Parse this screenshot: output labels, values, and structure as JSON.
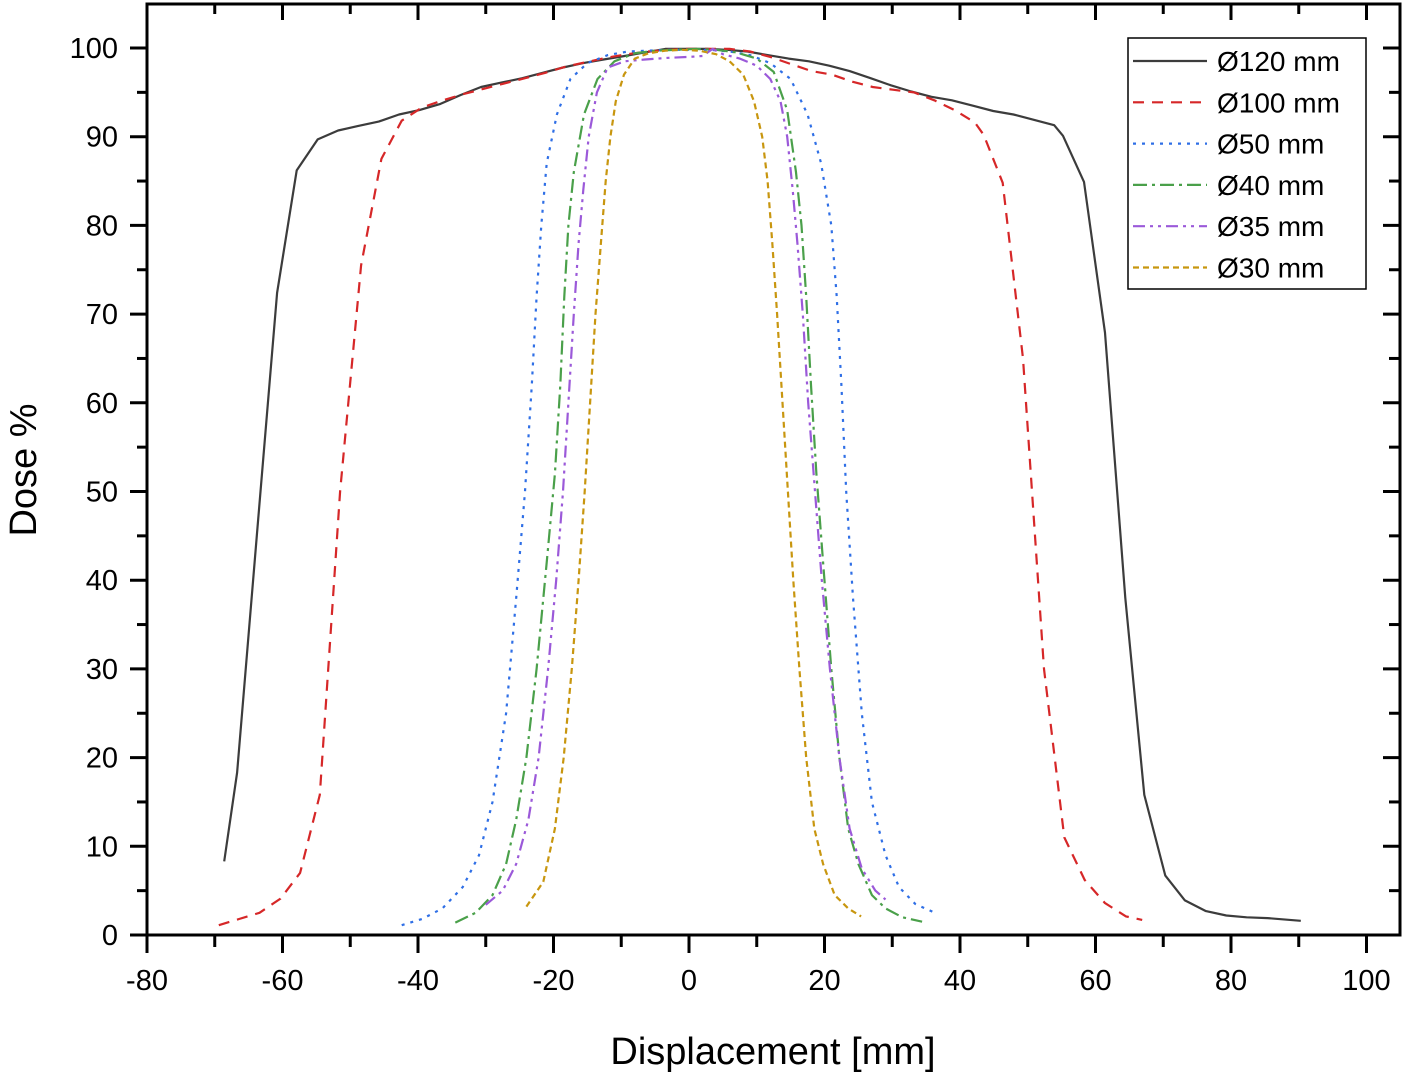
{
  "chart_data": {
    "type": "line",
    "title": "",
    "xlabel": "Displacement [mm]",
    "ylabel": "Dose %",
    "xlim": [
      -80,
      103
    ],
    "ylim": [
      0,
      104.5
    ],
    "xticks": [
      -80,
      -60,
      -40,
      -20,
      0,
      20,
      40,
      60,
      80,
      100
    ],
    "xtick_labels": [
      "-80",
      "-60",
      "-40",
      "-20",
      "0",
      "20",
      "40",
      "60",
      "80",
      "100"
    ],
    "yticks": [
      0,
      10,
      20,
      30,
      40,
      50,
      60,
      70,
      80,
      90,
      100
    ],
    "ytick_labels": [
      "0",
      "10",
      "20",
      "30",
      "40",
      "50",
      "60",
      "70",
      "80",
      "90",
      "100"
    ],
    "grid": false,
    "legend_position": "upper right",
    "series": [
      {
        "name": "Ø120 mm",
        "color": "#3c3c3c",
        "dash": "",
        "x": [
          -68.6,
          -66.7,
          -63.8,
          -60.8,
          -57.9,
          -54.8,
          -51.8,
          -48.9,
          -45.8,
          -42.8,
          -39.8,
          -36.7,
          -33.7,
          -30.7,
          -27.7,
          -24.6,
          -21.6,
          -18.6,
          -15.6,
          -12.6,
          -9.5,
          -6.5,
          -3.5,
          -0.4,
          2.6,
          5.6,
          8.6,
          11.6,
          14.7,
          17.7,
          20.7,
          23.7,
          26.8,
          29.8,
          32.8,
          35.8,
          38.8,
          41.9,
          44.9,
          47.9,
          50.9,
          53.9,
          55.2,
          58.3,
          61.4,
          64.4,
          67.2,
          70.3,
          73.2,
          76.3,
          79.3,
          82.3,
          85.4,
          90.3
        ],
        "y": [
          8.3,
          18.3,
          45.0,
          72.4,
          86.2,
          89.7,
          90.7,
          91.2,
          91.7,
          92.5,
          93.0,
          93.7,
          94.7,
          95.6,
          96.1,
          96.6,
          97.2,
          97.8,
          98.3,
          98.7,
          99.1,
          99.5,
          99.9,
          99.9,
          99.9,
          99.8,
          99.6,
          99.2,
          98.8,
          98.5,
          98.0,
          97.4,
          96.6,
          95.8,
          95.1,
          94.5,
          94.1,
          93.5,
          92.9,
          92.5,
          91.9,
          91.3,
          90.1,
          84.9,
          67.9,
          38.0,
          15.8,
          6.7,
          3.9,
          2.7,
          2.2,
          2.0,
          1.9,
          1.6
        ]
      },
      {
        "name": "Ø100 mm",
        "color": "#d62728",
        "dash": "11,8",
        "x": [
          -69.4,
          -66.4,
          -63.4,
          -60.3,
          -57.4,
          -54.5,
          -51.5,
          -48.4,
          -45.4,
          -42.4,
          -39.4,
          -36.3,
          -33.3,
          -30.3,
          -27.3,
          -24.2,
          -21.2,
          -18.2,
          -15.2,
          -12.2,
          -9.1,
          -6.1,
          -3.1,
          -0.1,
          2.9,
          6.0,
          9.0,
          12.0,
          15.0,
          18.1,
          21.1,
          24.1,
          27.1,
          30.1,
          33.2,
          36.2,
          39.2,
          42.2,
          43.5,
          46.3,
          49.3,
          52.4,
          55.4,
          58.4,
          61.4,
          64.5,
          66.9
        ],
        "y": [
          1.1,
          1.8,
          2.5,
          4.1,
          7.0,
          15.8,
          50.0,
          75.5,
          87.5,
          91.8,
          93.3,
          94.1,
          94.8,
          95.4,
          96.0,
          96.6,
          97.2,
          97.9,
          98.4,
          98.9,
          99.3,
          99.6,
          99.8,
          99.9,
          99.9,
          99.9,
          99.6,
          99.0,
          98.2,
          97.4,
          97.0,
          96.2,
          95.6,
          95.3,
          95.0,
          94.1,
          93.0,
          91.6,
          90.2,
          84.8,
          65.0,
          30.0,
          11.0,
          6.2,
          3.6,
          2.1,
          1.7
        ]
      },
      {
        "name": "Ø50 mm",
        "color": "#2f6fe6",
        "dash": "3,6",
        "x": [
          -42.4,
          -39.4,
          -36.4,
          -33.4,
          -31.0,
          -29.0,
          -27.0,
          -25.5,
          -24.2,
          -23.2,
          -22.5,
          -21.8,
          -21.0,
          -19.5,
          -17.5,
          -15.0,
          -12.0,
          -9.0,
          -6.0,
          -3.0,
          0.0,
          3.0,
          6.0,
          9.0,
          12.0,
          15.0,
          17.5,
          19.5,
          21.0,
          21.8,
          22.5,
          23.2,
          24.2,
          25.5,
          27.0,
          29.0,
          31.0,
          33.4,
          36.0
        ],
        "y": [
          1.1,
          1.8,
          3.0,
          5.4,
          9.0,
          15.0,
          25.0,
          38.0,
          50.0,
          62.0,
          72.0,
          80.0,
          87.0,
          92.5,
          96.5,
          98.3,
          99.2,
          99.6,
          99.7,
          99.8,
          99.8,
          99.8,
          99.6,
          99.2,
          98.3,
          96.5,
          92.5,
          87.0,
          80.0,
          72.0,
          62.0,
          50.0,
          38.0,
          25.0,
          15.0,
          9.0,
          5.4,
          3.5,
          2.6
        ]
      },
      {
        "name": "Ø40 mm",
        "color": "#4aa04a",
        "dash": "14,5,3,5",
        "x": [
          -34.5,
          -31.5,
          -29.0,
          -27.0,
          -25.5,
          -24.0,
          -22.5,
          -21.0,
          -19.8,
          -19.0,
          -18.4,
          -17.8,
          -17.0,
          -15.5,
          -13.5,
          -11.0,
          -8.0,
          -5.0,
          -2.0,
          1.0,
          4.0,
          7.0,
          10.0,
          12.5,
          14.5,
          15.8,
          16.6,
          17.3,
          18.0,
          18.8,
          19.8,
          21.0,
          22.2,
          23.5,
          25.0,
          27.0,
          29.0,
          31.5,
          34.4
        ],
        "y": [
          1.4,
          2.5,
          4.5,
          8.0,
          13.0,
          20.0,
          30.0,
          42.0,
          52.0,
          62.0,
          72.0,
          80.0,
          86.0,
          92.5,
          96.5,
          98.5,
          99.4,
          99.7,
          99.8,
          99.9,
          99.8,
          99.5,
          98.8,
          97.3,
          93.0,
          86.0,
          80.0,
          72.0,
          62.0,
          52.0,
          42.0,
          30.0,
          20.0,
          12.0,
          8.0,
          4.5,
          3.0,
          2.0,
          1.5
        ]
      },
      {
        "name": "Ø35 mm",
        "color": "#9b59d9",
        "dash": "12,5,3,5,3,5",
        "x": [
          -30.0,
          -27.5,
          -25.5,
          -23.7,
          -22.2,
          -20.8,
          -19.6,
          -18.6,
          -17.8,
          -17.0,
          -16.3,
          -15.6,
          -14.8,
          -13.6,
          -12.0,
          -9.5,
          -6.5,
          -3.0,
          0.0,
          2.0,
          3.5,
          5.0,
          7.5,
          10.0,
          12.0,
          13.5,
          14.5,
          15.3,
          16.0,
          16.8,
          17.6,
          18.6,
          19.6,
          20.8,
          22.2,
          23.7,
          25.5,
          27.5,
          29.0
        ],
        "y": [
          3.4,
          5.0,
          8.0,
          13.0,
          20.0,
          30.0,
          40.0,
          50.0,
          60.0,
          70.0,
          78.0,
          84.0,
          90.0,
          95.0,
          97.8,
          98.5,
          98.7,
          98.9,
          99.0,
          99.1,
          99.9,
          99.3,
          98.8,
          98.0,
          96.5,
          94.0,
          90.0,
          84.0,
          78.0,
          70.0,
          60.0,
          50.0,
          40.0,
          30.0,
          20.0,
          12.0,
          7.5,
          5.0,
          4.0
        ]
      },
      {
        "name": "Ø30 mm",
        "color": "#c8960f",
        "dash": "6,4",
        "x": [
          -24.0,
          -21.5,
          -19.8,
          -18.5,
          -17.3,
          -16.3,
          -15.4,
          -14.6,
          -13.8,
          -13.0,
          -12.3,
          -11.6,
          -10.8,
          -9.6,
          -8.0,
          -6.0,
          -3.5,
          -1.0,
          1.5,
          4.0,
          6.0,
          8.0,
          9.6,
          10.8,
          11.6,
          12.3,
          13.0,
          13.8,
          14.6,
          15.4,
          16.3,
          17.3,
          18.5,
          19.8,
          21.5,
          23.5,
          25.4
        ],
        "y": [
          3.2,
          6.0,
          12.0,
          20.0,
          30.0,
          40.0,
          50.0,
          60.0,
          70.0,
          78.0,
          85.0,
          90.0,
          94.0,
          97.0,
          98.8,
          99.4,
          99.7,
          99.8,
          99.7,
          99.3,
          98.5,
          97.0,
          94.0,
          90.0,
          85.0,
          78.0,
          70.0,
          60.0,
          50.0,
          40.0,
          30.0,
          20.0,
          12.0,
          8.0,
          4.5,
          3.0,
          2.1
        ]
      }
    ]
  }
}
